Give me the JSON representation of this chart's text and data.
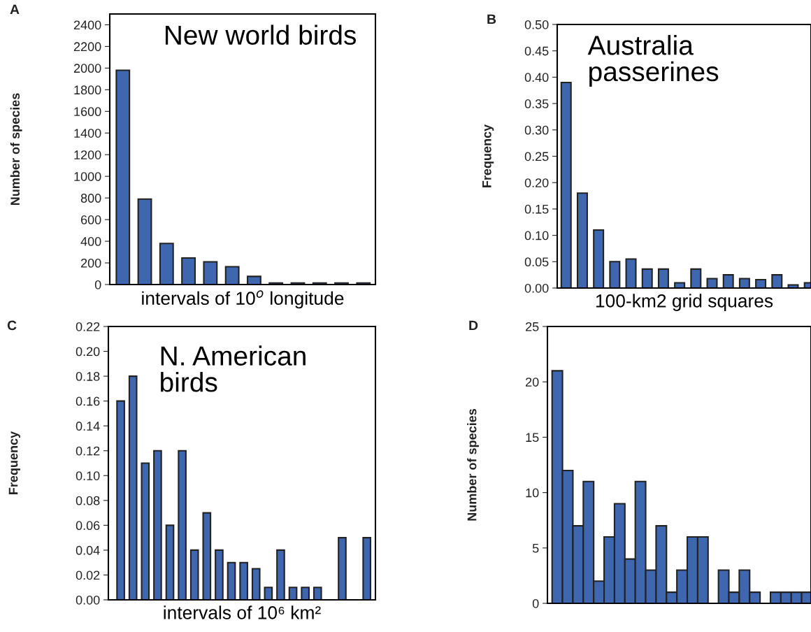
{
  "chart_data": [
    {
      "type": "bar",
      "title": "New world birds",
      "xlabel": "intervals of 10$^{o}$ longitude",
      "ylabel": "Number of species",
      "annotations": [
        "A"
      ],
      "categories": [
        null,
        null,
        null,
        null,
        null,
        null,
        null,
        null,
        null,
        null,
        null,
        null
      ],
      "values": [
        1980,
        790,
        380,
        245,
        210,
        165,
        75,
        15,
        15,
        15,
        15,
        15
      ],
      "color": "#3f67b0",
      "ylim": [
        0,
        2500
      ],
      "yticks": [
        0,
        200,
        400,
        600,
        800,
        1000,
        1200,
        1400,
        1600,
        1800,
        2000,
        2200,
        2400
      ],
      "grid": false,
      "legend": false
    },
    {
      "type": "bar",
      "title": "Australia\npasserines",
      "xlabel": "100-km2 grid squares",
      "ylabel": "Frequency",
      "annotations": [
        "B"
      ],
      "categories": [
        null,
        null,
        null,
        null,
        null,
        null,
        null,
        null,
        null,
        null,
        null,
        null,
        null,
        null,
        null,
        null
      ],
      "values": [
        0.39,
        0.18,
        0.11,
        0.05,
        0.055,
        0.036,
        0.036,
        0.01,
        0.036,
        0.018,
        0.025,
        0.018,
        0.016,
        0.025,
        0.006,
        0.01
      ],
      "color": "#3f67b0",
      "ylim": [
        0,
        0.5
      ],
      "yticks": [
        {
          "value": 0,
          "label": "0.00"
        },
        {
          "value": 0.05,
          "label": "0.05"
        },
        {
          "value": 0.1,
          "label": "0.10"
        },
        {
          "value": 0.15,
          "label": "0.15"
        },
        {
          "value": 0.2,
          "label": "0.20"
        },
        {
          "value": 0.25,
          "label": "0.25"
        },
        {
          "value": 0.3,
          "label": "0.30"
        },
        {
          "value": 0.35,
          "label": "0.35"
        },
        {
          "value": 0.4,
          "label": "0.40"
        },
        {
          "value": 0.45,
          "label": "0.45"
        },
        {
          "value": 0.5,
          "label": "0.50"
        }
      ],
      "grid": false,
      "legend": false
    },
    {
      "type": "bar",
      "title": "N. American\nbirds",
      "xlabel": "intervals of 10⁶ km²",
      "ylabel": "Frequency",
      "annotations": [
        "C"
      ],
      "categories": [
        null,
        null,
        null,
        null,
        null,
        null,
        null,
        null,
        null,
        null,
        null,
        null,
        null,
        null,
        null,
        null,
        null,
        null,
        null,
        null,
        null
      ],
      "values": [
        0.16,
        0.18,
        0.11,
        0.12,
        0.06,
        0.12,
        0.04,
        0.07,
        0.04,
        0.03,
        0.03,
        0.025,
        0.01,
        0.04,
        0.01,
        0.01,
        0.01,
        null,
        0.05,
        null,
        0.05
      ],
      "color": "#3f67b0",
      "ylim": [
        0,
        0.22
      ],
      "yticks": [
        {
          "value": 0,
          "label": "0.00"
        },
        {
          "value": 0.02,
          "label": "0.02"
        },
        {
          "value": 0.04,
          "label": "0.04"
        },
        {
          "value": 0.06,
          "label": "0.06"
        },
        {
          "value": 0.08,
          "label": "0.08"
        },
        {
          "value": 0.1,
          "label": "0.10"
        },
        {
          "value": 0.12,
          "label": "0.12"
        },
        {
          "value": 0.14,
          "label": "0.14"
        },
        {
          "value": 0.16,
          "label": "0.16"
        },
        {
          "value": 0.18,
          "label": "0.18"
        },
        {
          "value": 0.2,
          "label": "0.20"
        },
        {
          "value": 0.22,
          "label": "0.22"
        }
      ],
      "grid": false,
      "legend": false
    },
    {
      "type": "bar",
      "ylabel": "Number of species",
      "annotations": [
        "D"
      ],
      "categories": [
        null,
        null,
        null,
        null,
        null,
        null,
        null,
        null,
        null,
        null,
        null,
        null,
        null,
        null,
        null,
        null,
        null,
        null,
        null,
        null,
        null,
        null,
        null,
        null,
        null
      ],
      "values": [
        21,
        12,
        7,
        11,
        2,
        6,
        9,
        4,
        11,
        3,
        7,
        1,
        3,
        6,
        6,
        null,
        3,
        1,
        3,
        1,
        null,
        1,
        1,
        1,
        1
      ],
      "color": "#3f67b0",
      "ylim": [
        0,
        25
      ],
      "yticks": [
        0,
        5,
        10,
        15,
        20,
        25
      ],
      "grid": false,
      "legend": false
    }
  ]
}
